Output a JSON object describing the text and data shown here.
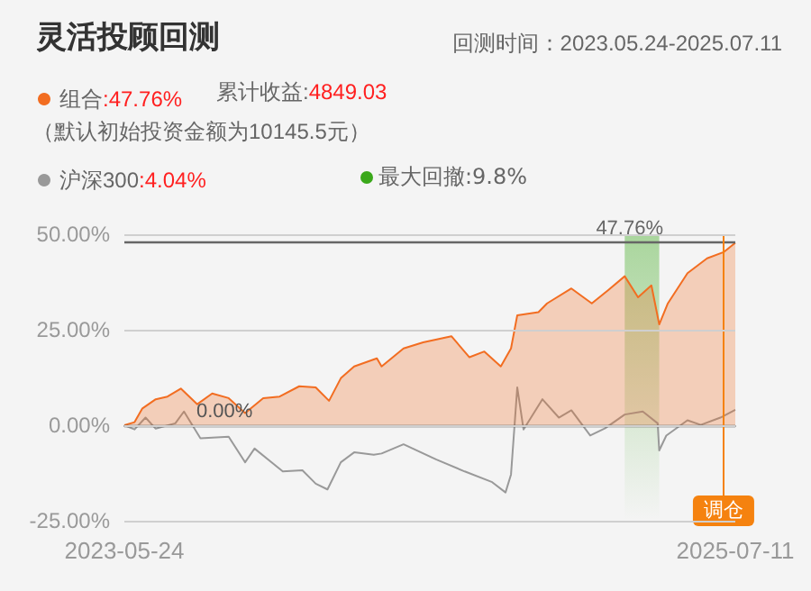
{
  "chart_data": {
    "type": "line",
    "title": "灵活投顾回测",
    "subtitle": "回测时间：2023.05.24-2025.07.11",
    "annotations": [
      ":47.76%",
      "累计收益:4849.03",
      "（默认初始投资金额为10145.5元）",
      ":4.04%"
    ],
    "xlim": [
      "2023-05-24",
      "2025-07-11"
    ],
    "xticks": [
      "2023-05-24",
      "2025-07-11"
    ],
    "ylim": [
      -25,
      50
    ],
    "yticks": [
      {
        "value": -25,
        "label": "-25.00%"
      },
      {
        "value": 0,
        "label": "0.00%"
      },
      {
        "value": 25,
        "label": "25.00%"
      },
      {
        "value": 50,
        "label": "50.00%"
      }
    ],
    "grid": "y",
    "legend": "top left",
    "marker": "none",
    "line_style": "solid",
    "series": [
      {
        "name": "组合",
        "type": "area",
        "color": "#f26d21",
        "x": [
          "2023-05-24",
          "2023-06-06",
          "2023-06-16",
          "2023-07-03",
          "2023-07-18",
          "2023-08-04",
          "2023-08-25",
          "2023-09-13",
          "2023-10-04",
          "2023-10-25",
          "2023-11-17",
          "2023-12-08",
          "2024-01-02",
          "2024-01-23",
          "2024-02-09",
          "2024-02-24",
          "2024-03-12",
          "2024-04-10",
          "2024-04-16",
          "2024-05-14",
          "2024-06-08",
          "2024-07-14",
          "2024-08-06",
          "2024-08-25",
          "2024-09-15",
          "2024-09-28",
          "2024-10-06",
          "2024-11-02",
          "2024-11-13",
          "2024-12-14",
          "2025-01-09",
          "2025-01-30",
          "2025-02-20",
          "2025-03-09",
          "2025-03-26",
          "2025-04-05",
          "2025-04-16",
          "2025-05-11",
          "2025-06-05",
          "2025-06-26",
          "2025-07-11"
        ],
        "values": [
          0,
          0.8,
          4.4,
          6.8,
          7.5,
          9.6,
          5.5,
          8.3,
          7.1,
          3.2,
          7.1,
          7.5,
          10.2,
          9.9,
          6.4,
          12.3,
          15.4,
          17.5,
          15.4,
          20.1,
          21.7,
          23.3,
          17.8,
          19.3,
          15.4,
          20.1,
          28.8,
          29.6,
          31.9,
          35.8,
          31.9,
          35.4,
          39.0,
          33.5,
          36.6,
          26.4,
          31.9,
          39.8,
          43.7,
          45.3,
          47.76
        ]
      },
      {
        "name": "沪深300",
        "color": "#999999",
        "x": [
          "2023-05-24",
          "2023-06-06",
          "2023-06-20",
          "2023-07-03",
          "2023-07-28",
          "2023-08-08",
          "2023-08-29",
          "2023-10-04",
          "2023-10-25",
          "2023-11-06",
          "2023-12-12",
          "2024-01-06",
          "2024-01-23",
          "2024-02-07",
          "2024-02-24",
          "2024-03-12",
          "2024-04-06",
          "2024-04-16",
          "2024-05-14",
          "2024-06-25",
          "2024-07-31",
          "2024-09-04",
          "2024-09-21",
          "2024-09-28",
          "2024-10-06",
          "2024-10-14",
          "2024-11-07",
          "2024-11-28",
          "2024-12-14",
          "2025-01-07",
          "2025-01-26",
          "2025-02-20",
          "2025-03-15",
          "2025-04-03",
          "2025-04-05",
          "2025-04-14",
          "2025-05-11",
          "2025-05-28",
          "2025-06-22",
          "2025-07-11"
        ],
        "values": [
          0,
          -1.1,
          2.0,
          -0.9,
          0.5,
          3.6,
          -3.4,
          -3.0,
          -9.7,
          -6.1,
          -12.1,
          -11.8,
          -15.3,
          -16.8,
          -9.7,
          -7.1,
          -7.7,
          -7.4,
          -5.0,
          -9.0,
          -12.1,
          -14.9,
          -17.6,
          -12.9,
          9.9,
          -1.1,
          6.8,
          2.0,
          3.9,
          -2.7,
          -0.8,
          2.8,
          3.6,
          0.5,
          -6.6,
          -2.7,
          1.3,
          0.1,
          2.0,
          4.04
        ]
      }
    ],
    "ref_lines": [
      {
        "axis": "y",
        "value": 0,
        "label": "0.00%",
        "color": "#555555"
      },
      {
        "axis": "y",
        "value": 47.76,
        "label": "47.76%",
        "color": "#666666"
      },
      {
        "axis": "x",
        "value": "2025-06-26",
        "label": "调仓",
        "color": "#f5820f"
      }
    ],
    "bands": [
      {
        "axis": "x",
        "from": "2025-02-20",
        "to": "2025-04-05",
        "label": "最大回撤:9.8%",
        "color": "#3aa81a"
      }
    ]
  }
}
